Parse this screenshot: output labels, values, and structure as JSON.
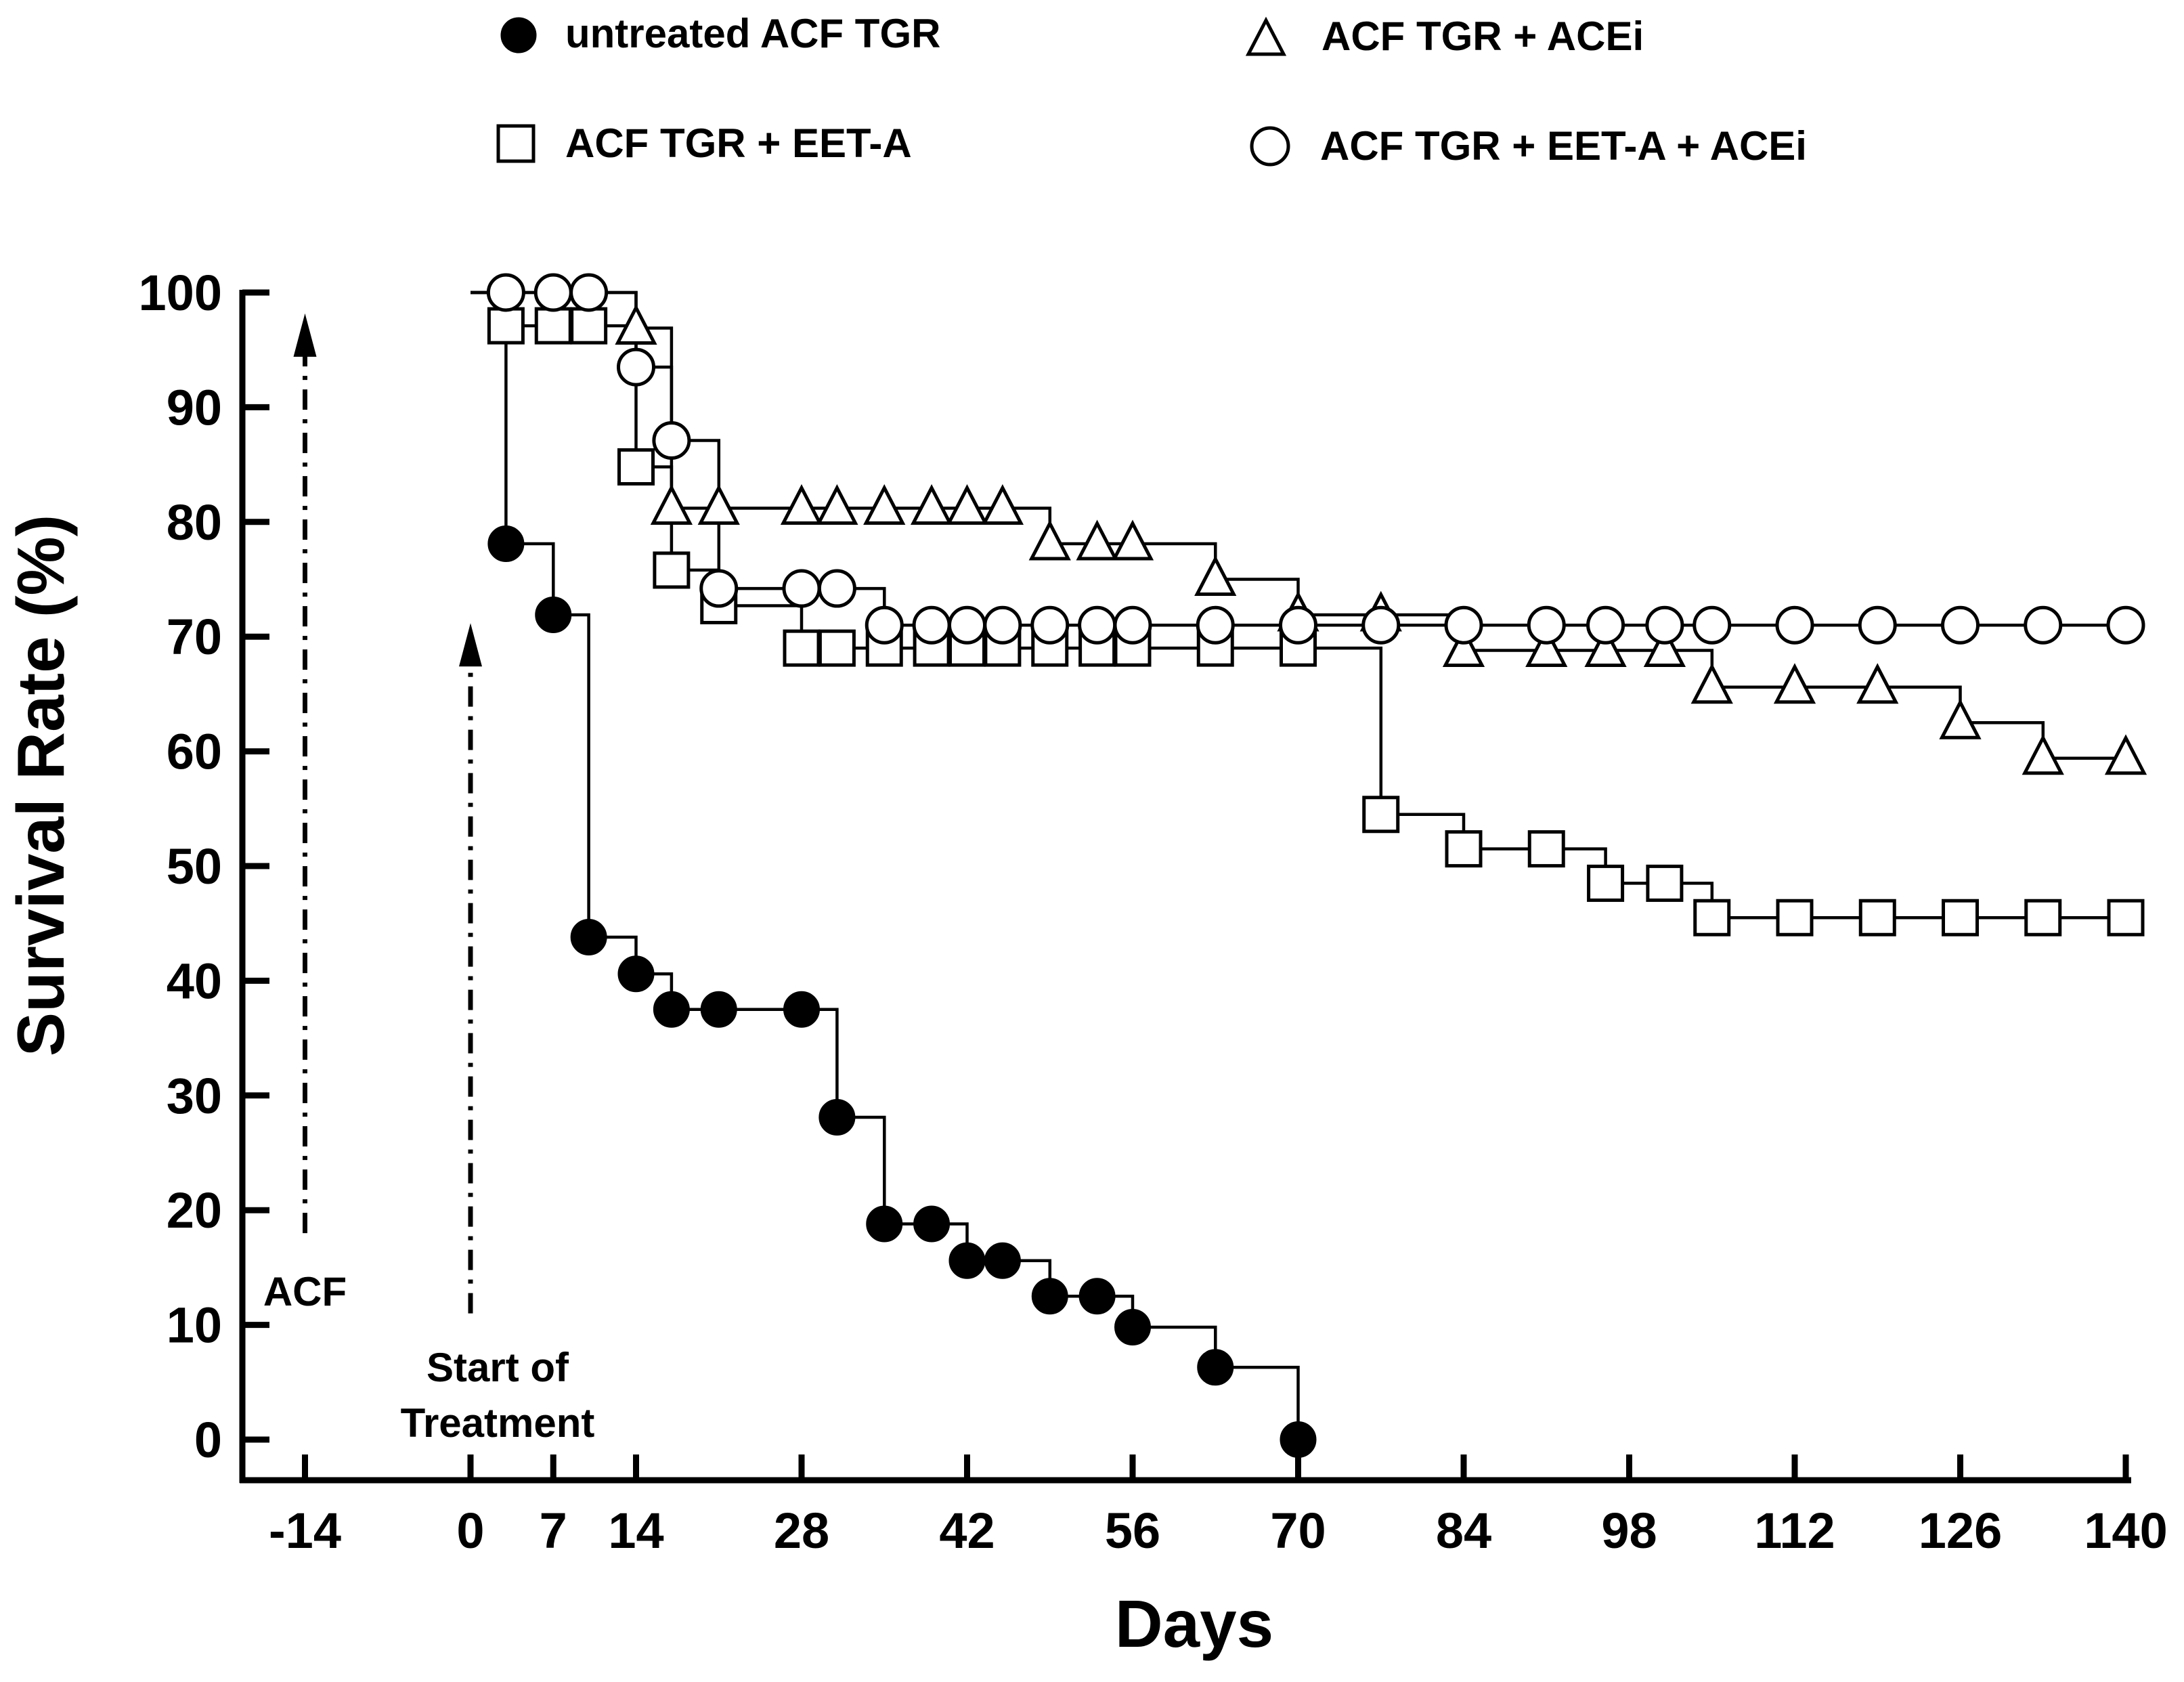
{
  "chart_data": {
    "type": "line",
    "subtype": "kaplan-meier step survival curve",
    "title": "",
    "xlabel": "Days",
    "ylabel": "Survival Rate (%)",
    "xlim": [
      -20,
      140
    ],
    "ylim": [
      0,
      100
    ],
    "x_ticks": [
      -14,
      0,
      7,
      14,
      28,
      42,
      56,
      70,
      84,
      98,
      112,
      126,
      140
    ],
    "y_ticks": [
      0,
      10,
      20,
      30,
      40,
      50,
      60,
      70,
      80,
      90,
      100
    ],
    "grid": false,
    "legend_position": "top",
    "annotations": [
      {
        "id": "acf",
        "text": "ACF",
        "arrow_day": -14,
        "arrow_from": 18,
        "arrow_to": 97
      },
      {
        "id": "treatment",
        "text_line1": "Start of",
        "text_line2": "Treatment",
        "arrow_day": 0,
        "arrow_from": 11,
        "arrow_to": 70
      }
    ],
    "series": [
      {
        "name": "untreated ACF TGR",
        "marker": "filled-circle",
        "curve": [
          [
            0,
            100
          ],
          [
            3,
            100
          ],
          [
            3,
            78.1
          ],
          [
            7,
            78.1
          ],
          [
            7,
            71.9
          ],
          [
            10,
            71.9
          ],
          [
            10,
            43.8
          ],
          [
            14,
            43.8
          ],
          [
            14,
            40.6
          ],
          [
            17,
            40.6
          ],
          [
            17,
            37.5
          ],
          [
            28,
            37.5
          ],
          [
            28,
            37.5
          ],
          [
            31,
            37.5
          ],
          [
            31,
            28.1
          ],
          [
            35,
            28.1
          ],
          [
            35,
            18.8
          ],
          [
            42,
            18.8
          ],
          [
            42,
            15.6
          ],
          [
            49,
            15.6
          ],
          [
            49,
            12.5
          ],
          [
            56,
            12.5
          ],
          [
            56,
            9.8
          ],
          [
            63,
            9.8
          ],
          [
            63,
            6.3
          ],
          [
            70,
            6.3
          ],
          [
            70,
            0
          ]
        ],
        "points": [
          [
            3,
            78.1
          ],
          [
            7,
            71.9
          ],
          [
            10,
            43.8
          ],
          [
            14,
            40.6
          ],
          [
            17,
            37.5
          ],
          [
            21,
            37.5
          ],
          [
            28,
            37.5
          ],
          [
            31,
            28.1
          ],
          [
            35,
            18.8
          ],
          [
            39,
            18.8
          ],
          [
            42,
            15.6
          ],
          [
            45,
            15.6
          ],
          [
            49,
            12.5
          ],
          [
            53,
            12.5
          ],
          [
            56,
            9.8
          ],
          [
            63,
            6.3
          ],
          [
            70,
            0
          ]
        ]
      },
      {
        "name": "ACF TGR + ACEi",
        "marker": "open-triangle",
        "curve": [
          [
            0,
            100
          ],
          [
            14,
            100
          ],
          [
            14,
            96.9
          ],
          [
            17,
            96.9
          ],
          [
            17,
            81.2
          ],
          [
            49,
            81.2
          ],
          [
            49,
            78.1
          ],
          [
            63,
            78.1
          ],
          [
            63,
            75
          ],
          [
            70,
            75
          ],
          [
            70,
            71.9
          ],
          [
            84,
            71.9
          ],
          [
            84,
            68.8
          ],
          [
            105,
            68.8
          ],
          [
            105,
            65.6
          ],
          [
            126,
            65.6
          ],
          [
            126,
            62.5
          ],
          [
            133,
            62.5
          ],
          [
            133,
            59.4
          ],
          [
            140,
            59.4
          ]
        ],
        "points": [
          [
            14,
            96.9
          ],
          [
            17,
            81.2
          ],
          [
            21,
            81.2
          ],
          [
            28,
            81.2
          ],
          [
            31,
            81.2
          ],
          [
            35,
            81.2
          ],
          [
            39,
            81.2
          ],
          [
            42,
            81.2
          ],
          [
            45,
            81.2
          ],
          [
            49,
            78.1
          ],
          [
            53,
            78.1
          ],
          [
            56,
            78.1
          ],
          [
            63,
            75
          ],
          [
            70,
            71.9
          ],
          [
            77,
            71.9
          ],
          [
            84,
            68.8
          ],
          [
            91,
            68.8
          ],
          [
            96,
            68.8
          ],
          [
            101,
            68.8
          ],
          [
            105,
            65.6
          ],
          [
            112,
            65.6
          ],
          [
            119,
            65.6
          ],
          [
            126,
            62.5
          ],
          [
            133,
            59.4
          ],
          [
            140,
            59.4
          ]
        ]
      },
      {
        "name": "ACF TGR + EET-A",
        "marker": "open-square",
        "curve": [
          [
            0,
            100
          ],
          [
            3,
            100
          ],
          [
            3,
            97.1
          ],
          [
            14,
            97.1
          ],
          [
            14,
            84.8
          ],
          [
            17,
            84.8
          ],
          [
            17,
            75.8
          ],
          [
            21,
            75.8
          ],
          [
            21,
            72.7
          ],
          [
            28,
            72.7
          ],
          [
            28,
            69
          ],
          [
            70,
            69
          ],
          [
            70,
            69
          ],
          [
            77,
            69
          ],
          [
            77,
            54.5
          ],
          [
            84,
            54.5
          ],
          [
            84,
            51.5
          ],
          [
            96,
            51.5
          ],
          [
            96,
            48.5
          ],
          [
            105,
            48.5
          ],
          [
            105,
            45.5
          ],
          [
            140,
            45.5
          ]
        ],
        "points": [
          [
            3,
            97.1
          ],
          [
            7,
            97.1
          ],
          [
            10,
            97.1
          ],
          [
            14,
            84.8
          ],
          [
            17,
            75.8
          ],
          [
            21,
            72.7
          ],
          [
            28,
            69
          ],
          [
            31,
            69
          ],
          [
            35,
            69
          ],
          [
            39,
            69
          ],
          [
            42,
            69
          ],
          [
            45,
            69
          ],
          [
            49,
            69
          ],
          [
            53,
            69
          ],
          [
            56,
            69
          ],
          [
            63,
            69
          ],
          [
            70,
            69
          ],
          [
            77,
            54.5
          ],
          [
            84,
            51.5
          ],
          [
            91,
            51.5
          ],
          [
            96,
            48.5
          ],
          [
            101,
            48.5
          ],
          [
            105,
            45.5
          ],
          [
            112,
            45.5
          ],
          [
            119,
            45.5
          ],
          [
            126,
            45.5
          ],
          [
            133,
            45.5
          ],
          [
            140,
            45.5
          ]
        ]
      },
      {
        "name": "ACF TGR + EET-A + ACEi",
        "marker": "open-circle",
        "curve": [
          [
            0,
            100
          ],
          [
            14,
            100
          ],
          [
            14,
            93.5
          ],
          [
            17,
            93.5
          ],
          [
            17,
            87.1
          ],
          [
            21,
            87.1
          ],
          [
            21,
            74.2
          ],
          [
            31,
            74.2
          ],
          [
            31,
            74.2
          ],
          [
            35,
            74.2
          ],
          [
            35,
            71
          ],
          [
            140,
            71
          ]
        ],
        "points": [
          [
            3,
            100
          ],
          [
            7,
            100
          ],
          [
            10,
            100
          ],
          [
            14,
            93.5
          ],
          [
            17,
            87.1
          ],
          [
            21,
            74.2
          ],
          [
            28,
            74.2
          ],
          [
            31,
            74.2
          ],
          [
            35,
            71
          ],
          [
            39,
            71
          ],
          [
            42,
            71
          ],
          [
            45,
            71
          ],
          [
            49,
            71
          ],
          [
            53,
            71
          ],
          [
            56,
            71
          ],
          [
            63,
            71
          ],
          [
            70,
            71
          ],
          [
            77,
            71
          ],
          [
            84,
            71
          ],
          [
            91,
            71
          ],
          [
            96,
            71
          ],
          [
            101,
            71
          ],
          [
            105,
            71
          ],
          [
            112,
            71
          ],
          [
            119,
            71
          ],
          [
            126,
            71
          ],
          [
            133,
            71
          ],
          [
            140,
            71
          ]
        ]
      }
    ]
  }
}
